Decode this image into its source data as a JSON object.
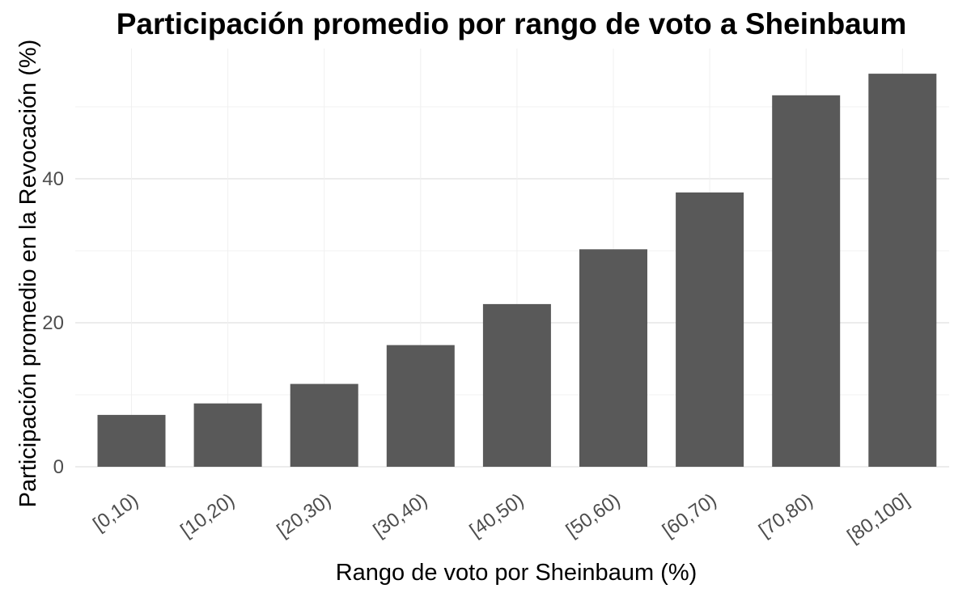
{
  "chart_data": {
    "type": "bar",
    "title": "Participación promedio por rango de voto a Sheinbaum",
    "xlabel": "Rango de voto por Sheinbaum (%)",
    "ylabel": "Participación promedio en la Revocación (%)",
    "categories": [
      "[0,10)",
      "[10,20)",
      "[20,30)",
      "[30,40)",
      "[40,50)",
      "[50,60)",
      "[60,70)",
      "[70,80)",
      "[80,100]"
    ],
    "values": [
      7.2,
      8.8,
      11.5,
      16.9,
      22.6,
      30.2,
      38.1,
      51.6,
      54.6
    ],
    "ylim": [
      0,
      56
    ],
    "yticks": [
      0,
      20,
      40
    ],
    "yticks_minor": [
      10,
      30,
      50
    ],
    "grid": true,
    "bar_color": "#595959",
    "gridline_color": "#e6e6e6"
  }
}
